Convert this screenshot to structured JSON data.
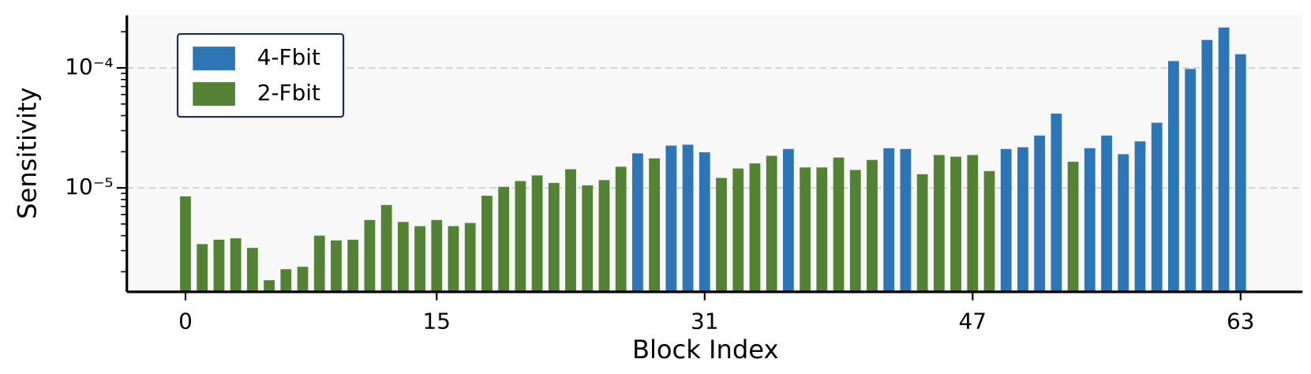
{
  "chart_data": {
    "type": "bar",
    "x_label": "Block Index",
    "y_label": "Sensitivity",
    "log_y": true,
    "grid": true,
    "legend": "upper left",
    "x": [
      0,
      1,
      2,
      3,
      4,
      5,
      6,
      7,
      8,
      9,
      10,
      11,
      12,
      13,
      14,
      15,
      16,
      17,
      18,
      19,
      20,
      21,
      22,
      23,
      24,
      25,
      26,
      27,
      28,
      29,
      30,
      31,
      32,
      33,
      34,
      35,
      36,
      37,
      38,
      39,
      40,
      41,
      42,
      43,
      44,
      45,
      46,
      47,
      48,
      49,
      50,
      51,
      52,
      53,
      54,
      55,
      56,
      57,
      58,
      59,
      60,
      61,
      62,
      63
    ],
    "xlim": [
      -3.5,
      66.7
    ],
    "xticks": [
      0,
      15,
      31,
      47,
      63
    ],
    "ylim": [
      1.36e-06,
      0.000274
    ],
    "yticks": [
      {
        "value": 1e-05,
        "label": "10⁻⁵"
      },
      {
        "value": 0.0001,
        "label": "10⁻⁴"
      }
    ],
    "minor_yticks": [
      2e-06,
      3e-06,
      4e-06,
      5e-06,
      6e-06,
      7e-06,
      8e-06,
      9e-06,
      2e-05,
      3e-05,
      4e-05,
      5e-05,
      6e-05,
      7e-05,
      8e-05,
      9e-05,
      0.0002
    ],
    "series": [
      {
        "name": "4-Fbit",
        "color": "#2e75b6",
        "values": [
          null,
          null,
          null,
          null,
          null,
          null,
          null,
          null,
          null,
          null,
          null,
          null,
          null,
          null,
          null,
          null,
          null,
          null,
          null,
          null,
          null,
          null,
          null,
          null,
          null,
          null,
          null,
          1.94e-05,
          null,
          2.25e-05,
          2.29e-05,
          1.98e-05,
          null,
          null,
          null,
          null,
          2.11e-05,
          null,
          null,
          null,
          null,
          null,
          2.14e-05,
          2.11e-05,
          null,
          null,
          null,
          null,
          null,
          2.11e-05,
          2.18e-05,
          2.73e-05,
          4.16e-05,
          null,
          2.14e-05,
          2.73e-05,
          1.91e-05,
          2.44e-05,
          3.49e-05,
          0.000114,
          9.8e-05,
          0.000171,
          0.000217,
          0.00013
        ]
      },
      {
        "name": "2-Fbit",
        "color": "#548235",
        "values": [
          8.5e-06,
          3.4e-06,
          3.7e-06,
          3.8e-06,
          3.16e-06,
          1.7e-06,
          2.1e-06,
          2.2e-06,
          4e-06,
          3.65e-06,
          3.7e-06,
          5.4e-06,
          7.2e-06,
          5.2e-06,
          4.8e-06,
          5.4e-06,
          4.8e-06,
          5.1e-06,
          8.6e-06,
          1.02e-05,
          1.14e-05,
          1.27e-05,
          1.1e-05,
          1.43e-05,
          1.05e-05,
          1.16e-05,
          1.5e-05,
          null,
          1.76e-05,
          null,
          null,
          null,
          1.21e-05,
          1.45e-05,
          1.6e-05,
          1.85e-05,
          null,
          1.48e-05,
          1.48e-05,
          1.79e-05,
          1.41e-05,
          1.71e-05,
          null,
          null,
          1.3e-05,
          1.88e-05,
          1.82e-05,
          1.88e-05,
          1.38e-05,
          null,
          null,
          null,
          null,
          1.65e-05,
          null,
          null,
          null,
          null,
          null,
          null,
          null,
          null,
          null,
          null
        ]
      }
    ]
  }
}
